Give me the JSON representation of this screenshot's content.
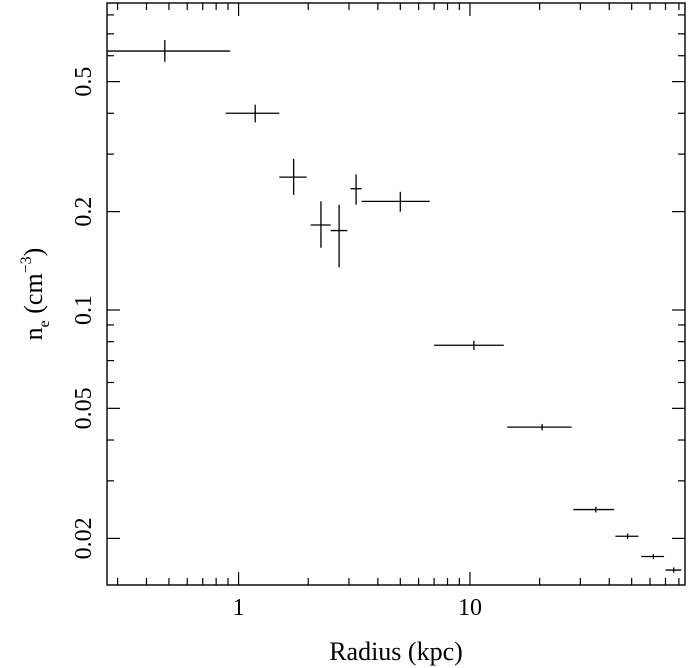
{
  "chart_data": {
    "type": "scatter",
    "title": "",
    "xlabel": "Radius (kpc)",
    "ylabel": {
      "base": "n",
      "subscript": "e",
      "unit_open": " (cm",
      "unit_sup": "−3",
      "unit_close": ")"
    },
    "xscale": "log",
    "yscale": "log",
    "xlim": [
      0.27,
      85
    ],
    "ylim": [
      0.0144,
      0.87
    ],
    "x_major_ticks": [
      {
        "value": 1,
        "label": "1"
      },
      {
        "value": 10,
        "label": "10"
      }
    ],
    "x_minor_ticks": [
      0.3,
      0.4,
      0.5,
      0.6,
      0.7,
      0.8,
      0.9,
      2,
      3,
      4,
      5,
      6,
      7,
      8,
      9,
      20,
      30,
      40,
      50,
      60,
      70,
      80
    ],
    "y_major_ticks": [
      {
        "value": 0.02,
        "label": "0.02"
      },
      {
        "value": 0.05,
        "label": "0.05"
      },
      {
        "value": 0.1,
        "label": "0.1"
      },
      {
        "value": 0.2,
        "label": "0.2"
      },
      {
        "value": 0.5,
        "label": "0.5"
      }
    ],
    "y_minor_ticks": [
      0.03,
      0.04,
      0.06,
      0.07,
      0.08,
      0.09,
      0.3,
      0.4,
      0.6,
      0.7,
      0.8
    ],
    "grid": false,
    "legend": "none",
    "series": [
      {
        "points": [
          {
            "x": 0.48,
            "y": 0.62,
            "xlo": 0.27,
            "xhi": 0.92,
            "ylo": 0.575,
            "yhi": 0.67
          },
          {
            "x": 1.18,
            "y": 0.4,
            "xlo": 0.88,
            "xhi": 1.5,
            "ylo": 0.375,
            "yhi": 0.425
          },
          {
            "x": 1.73,
            "y": 0.255,
            "xlo": 1.5,
            "xhi": 1.97,
            "ylo": 0.225,
            "yhi": 0.29
          },
          {
            "x": 2.27,
            "y": 0.182,
            "xlo": 2.05,
            "xhi": 2.5,
            "ylo": 0.155,
            "yhi": 0.215
          },
          {
            "x": 2.72,
            "y": 0.175,
            "xlo": 2.5,
            "xhi": 2.95,
            "ylo": 0.135,
            "yhi": 0.21
          },
          {
            "x": 3.22,
            "y": 0.235,
            "xlo": 3.05,
            "xhi": 3.4,
            "ylo": 0.21,
            "yhi": 0.26
          },
          {
            "x": 5.0,
            "y": 0.215,
            "xlo": 3.4,
            "xhi": 6.7,
            "ylo": 0.2,
            "yhi": 0.23
          },
          {
            "x": 10.4,
            "y": 0.078,
            "xlo": 7.0,
            "xhi": 14.0,
            "ylo": 0.0755,
            "yhi": 0.0805
          },
          {
            "x": 20.5,
            "y": 0.0438,
            "xlo": 14.5,
            "xhi": 27.5,
            "ylo": 0.0428,
            "yhi": 0.0448
          },
          {
            "x": 35.0,
            "y": 0.0245,
            "xlo": 28.0,
            "xhi": 42.0,
            "ylo": 0.024,
            "yhi": 0.025
          },
          {
            "x": 48.0,
            "y": 0.0203,
            "xlo": 42.5,
            "xhi": 53.5,
            "ylo": 0.0199,
            "yhi": 0.0207
          },
          {
            "x": 62.0,
            "y": 0.0176,
            "xlo": 55.0,
            "xhi": 69.0,
            "ylo": 0.0173,
            "yhi": 0.0179
          },
          {
            "x": 76.0,
            "y": 0.016,
            "xlo": 70.0,
            "xhi": 82.0,
            "ylo": 0.0157,
            "yhi": 0.0163
          }
        ]
      }
    ]
  }
}
